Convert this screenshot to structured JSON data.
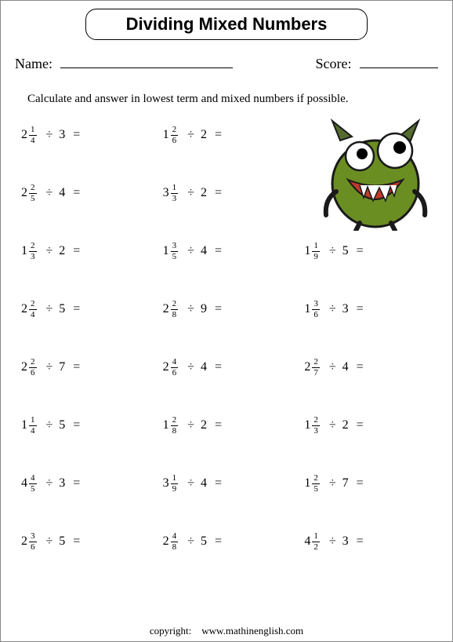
{
  "title": "Dividing Mixed Numbers",
  "name_label": "Name:",
  "score_label": "Score:",
  "instruction": "Calculate and  answer in lowest term and mixed numbers if possible.",
  "footer_label": "copyright:",
  "footer_url": "www.mathinenglish.com",
  "monster": {
    "body_color": "#6b8e23",
    "mouth_color": "#c03a2b",
    "teeth_color": "#ffffff",
    "eye_white": "#ffffff",
    "eye_black": "#000000",
    "outline": "#1a1a1a",
    "horn_color": "#556b2f"
  },
  "problems": [
    [
      {
        "w": 2,
        "n": 1,
        "d": 4,
        "div": 3
      },
      {
        "w": 1,
        "n": 2,
        "d": 6,
        "div": 2
      },
      null
    ],
    [
      {
        "w": 2,
        "n": 2,
        "d": 5,
        "div": 4
      },
      {
        "w": 3,
        "n": 1,
        "d": 3,
        "div": 2
      },
      null
    ],
    [
      {
        "w": 1,
        "n": 2,
        "d": 3,
        "div": 2
      },
      {
        "w": 1,
        "n": 3,
        "d": 5,
        "div": 4
      },
      {
        "w": 1,
        "n": 1,
        "d": 9,
        "div": 5
      }
    ],
    [
      {
        "w": 2,
        "n": 2,
        "d": 4,
        "div": 5
      },
      {
        "w": 2,
        "n": 2,
        "d": 8,
        "div": 9
      },
      {
        "w": 1,
        "n": 3,
        "d": 6,
        "div": 3
      }
    ],
    [
      {
        "w": 2,
        "n": 2,
        "d": 6,
        "div": 7
      },
      {
        "w": 2,
        "n": 4,
        "d": 6,
        "div": 4
      },
      {
        "w": 2,
        "n": 2,
        "d": 7,
        "div": 4
      }
    ],
    [
      {
        "w": 1,
        "n": 1,
        "d": 4,
        "div": 5
      },
      {
        "w": 1,
        "n": 2,
        "d": 8,
        "div": 2
      },
      {
        "w": 1,
        "n": 2,
        "d": 3,
        "div": 2
      }
    ],
    [
      {
        "w": 4,
        "n": 4,
        "d": 5,
        "div": 3
      },
      {
        "w": 3,
        "n": 1,
        "d": 9,
        "div": 4
      },
      {
        "w": 1,
        "n": 2,
        "d": 5,
        "div": 7
      }
    ],
    [
      {
        "w": 2,
        "n": 3,
        "d": 6,
        "div": 5
      },
      {
        "w": 2,
        "n": 4,
        "d": 8,
        "div": 5
      },
      {
        "w": 4,
        "n": 1,
        "d": 2,
        "div": 3
      }
    ]
  ]
}
